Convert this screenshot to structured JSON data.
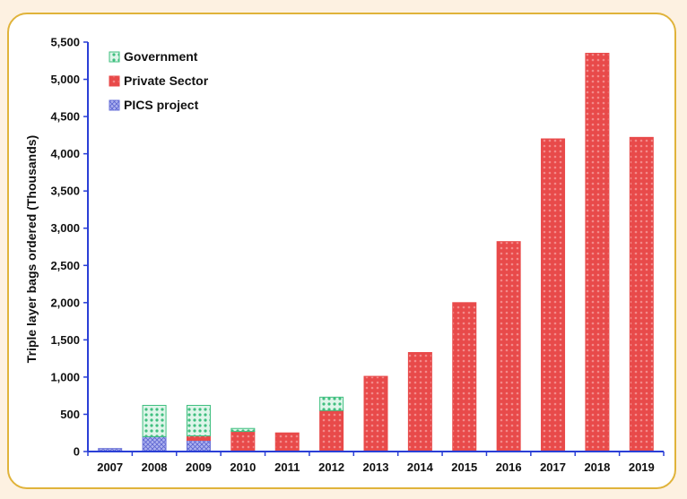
{
  "colors": {
    "background": "#fdf1e1",
    "frame_border": "#e0b33a",
    "axis": "#2a3fd6",
    "government": "#3fbf7f",
    "private_sector": "#e84a4a",
    "pics_project": "#6a72d8"
  },
  "chart_data": {
    "type": "bar",
    "stacked": true,
    "title": "",
    "xlabel": "",
    "ylabel": "Triple layer bags ordered (Thousands)",
    "ylim": [
      0,
      5500
    ],
    "yticks": [
      0,
      500,
      1000,
      1500,
      2000,
      2500,
      3000,
      3500,
      4000,
      4500,
      5000,
      5500
    ],
    "ytick_labels": [
      "0",
      "500",
      "1,000",
      "1,500",
      "2,000",
      "2,500",
      "3,000",
      "3,500",
      "4,000",
      "4,500",
      "5,000",
      "5,500"
    ],
    "categories": [
      "2007",
      "2008",
      "2009",
      "2010",
      "2011",
      "2012",
      "2013",
      "2014",
      "2015",
      "2016",
      "2017",
      "2018",
      "2019"
    ],
    "series": [
      {
        "name": "PICS project",
        "color": "#6a72d8",
        "values": [
          40,
          200,
          150,
          0,
          0,
          0,
          0,
          0,
          0,
          0,
          0,
          0,
          0
        ]
      },
      {
        "name": "Private Sector",
        "color": "#e84a4a",
        "values": [
          0,
          0,
          60,
          270,
          250,
          550,
          1010,
          1330,
          2000,
          2820,
          4200,
          5350,
          4220
        ]
      },
      {
        "name": "Government",
        "color": "#3fbf7f",
        "values": [
          0,
          420,
          410,
          40,
          0,
          180,
          0,
          0,
          0,
          0,
          0,
          0,
          0
        ]
      }
    ],
    "legend_order": [
      "Government",
      "Private Sector",
      "PICS project"
    ],
    "legend_position": "top-left",
    "grid": false
  }
}
